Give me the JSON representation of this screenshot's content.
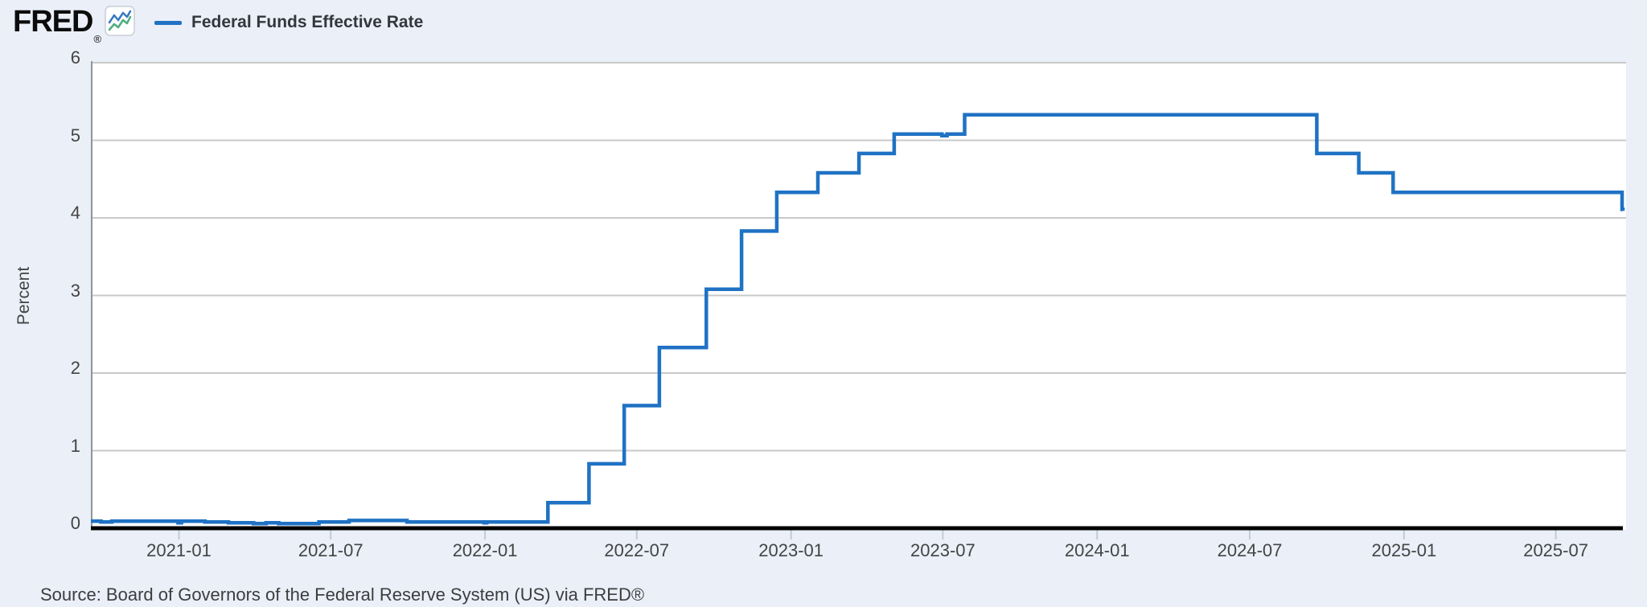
{
  "header": {
    "logo_text": "FRED",
    "registered_mark": "®",
    "chart_icon": "line-chart-icon",
    "legend": {
      "label": "Federal Funds Effective Rate"
    }
  },
  "footer": {
    "source_text": "Source: Board of Governors of the Federal Reserve System (US) via FRED®"
  },
  "colors": {
    "page_bg": "#eaeff8",
    "plot_bg": "#ffffff",
    "grid": "#c9c9c9",
    "left_border": "#8f949c",
    "axis": "#000000",
    "tick": "#c3cad8",
    "label_text": "#444444",
    "legend_text": "#32373e",
    "line": "#1f72c4",
    "icon_blue": "#3779c2",
    "icon_green": "#4eae7f"
  },
  "chart_data": {
    "type": "line",
    "step": true,
    "title": "Federal Funds Effective Rate",
    "xlabel": "",
    "ylabel": "Percent",
    "ylim": [
      0,
      6
    ],
    "yticks": [
      0,
      1,
      2,
      3,
      4,
      5,
      6
    ],
    "x_domain": [
      "2020-09-18",
      "2025-09-19"
    ],
    "xticks": [
      {
        "date": "2021-01-01",
        "label": "2021-01"
      },
      {
        "date": "2021-07-01",
        "label": "2021-07"
      },
      {
        "date": "2022-01-01",
        "label": "2022-01"
      },
      {
        "date": "2022-07-01",
        "label": "2022-07"
      },
      {
        "date": "2023-01-01",
        "label": "2023-01"
      },
      {
        "date": "2023-07-01",
        "label": "2023-07"
      },
      {
        "date": "2024-01-01",
        "label": "2024-01"
      },
      {
        "date": "2024-07-01",
        "label": "2024-07"
      },
      {
        "date": "2025-01-01",
        "label": "2025-01"
      },
      {
        "date": "2025-07-01",
        "label": "2025-07"
      }
    ],
    "grid": "horizontal",
    "legend_position": "top-left",
    "series": [
      {
        "name": "Federal Funds Effective Rate",
        "units": "Percent",
        "points": [
          [
            "2020-09-18",
            0.09
          ],
          [
            "2020-09-30",
            0.08
          ],
          [
            "2020-10-13",
            0.09
          ],
          [
            "2020-12-31",
            0.07
          ],
          [
            "2021-01-04",
            0.09
          ],
          [
            "2021-02-01",
            0.08
          ],
          [
            "2021-03-01",
            0.07
          ],
          [
            "2021-03-31",
            0.06
          ],
          [
            "2021-04-15",
            0.07
          ],
          [
            "2021-04-30",
            0.06
          ],
          [
            "2021-06-17",
            0.08
          ],
          [
            "2021-07-23",
            0.1
          ],
          [
            "2021-09-30",
            0.08
          ],
          [
            "2021-12-31",
            0.07
          ],
          [
            "2022-01-03",
            0.08
          ],
          [
            "2022-03-17",
            0.33
          ],
          [
            "2022-05-05",
            0.83
          ],
          [
            "2022-06-16",
            1.58
          ],
          [
            "2022-07-28",
            2.33
          ],
          [
            "2022-09-22",
            3.08
          ],
          [
            "2022-11-03",
            3.83
          ],
          [
            "2022-12-15",
            4.33
          ],
          [
            "2023-02-02",
            4.58
          ],
          [
            "2023-03-23",
            4.83
          ],
          [
            "2023-05-04",
            5.08
          ],
          [
            "2023-06-30",
            5.06
          ],
          [
            "2023-07-06",
            5.08
          ],
          [
            "2023-07-27",
            5.33
          ],
          [
            "2024-09-19",
            4.83
          ],
          [
            "2024-11-08",
            4.58
          ],
          [
            "2024-12-19",
            4.33
          ],
          [
            "2025-09-18",
            4.11
          ],
          [
            "2025-09-19",
            4.09
          ]
        ]
      }
    ]
  }
}
